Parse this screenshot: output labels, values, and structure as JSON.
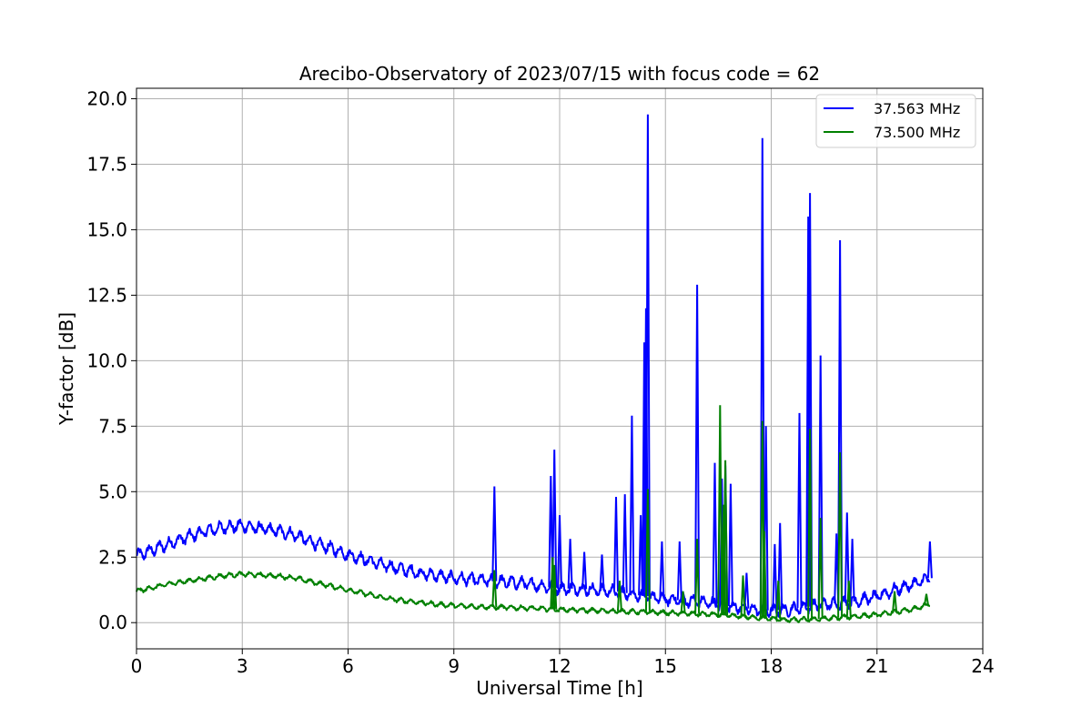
{
  "chart_data": {
    "type": "line",
    "title": "Arecibo-Observatory of 2023/07/15 with focus code = 62",
    "xlabel": "Universal Time [h]",
    "ylabel": "Y-factor [dB]",
    "xlim": [
      0,
      24
    ],
    "ylim": [
      -1,
      20.4
    ],
    "x_ticks": [
      0,
      3,
      6,
      9,
      12,
      15,
      18,
      21,
      24
    ],
    "x_tick_labels": [
      "0",
      "3",
      "6",
      "9",
      "12",
      "15",
      "18",
      "21",
      "24"
    ],
    "y_ticks": [
      0.0,
      2.5,
      5.0,
      7.5,
      10.0,
      12.5,
      15.0,
      17.5,
      20.0
    ],
    "y_tick_labels": [
      "0.0",
      "2.5",
      "5.0",
      "7.5",
      "10.0",
      "12.5",
      "15.0",
      "17.5",
      "20.0"
    ],
    "grid": true,
    "legend_position": "top-right",
    "series": [
      {
        "name": "37.563 MHz",
        "color": "#0000ff",
        "baseline": [
          [
            0,
            2.55
          ],
          [
            0.5,
            2.8
          ],
          [
            1,
            3.05
          ],
          [
            1.5,
            3.3
          ],
          [
            2,
            3.5
          ],
          [
            2.5,
            3.65
          ],
          [
            3,
            3.7
          ],
          [
            3.5,
            3.6
          ],
          [
            4,
            3.5
          ],
          [
            4.5,
            3.35
          ],
          [
            5,
            3.05
          ],
          [
            5.5,
            2.85
          ],
          [
            6,
            2.6
          ],
          [
            6.5,
            2.4
          ],
          [
            7,
            2.2
          ],
          [
            7.5,
            2.05
          ],
          [
            8,
            1.9
          ],
          [
            8.5,
            1.8
          ],
          [
            9,
            1.7
          ],
          [
            9.5,
            1.65
          ],
          [
            10,
            1.6
          ],
          [
            10.5,
            1.55
          ],
          [
            11,
            1.5
          ],
          [
            11.5,
            1.4
          ],
          [
            12,
            1.3
          ],
          [
            12.5,
            1.3
          ],
          [
            13,
            1.25
          ],
          [
            13.5,
            1.2
          ],
          [
            14,
            1.1
          ],
          [
            14.5,
            1.0
          ],
          [
            15,
            0.9
          ],
          [
            15.5,
            0.85
          ],
          [
            16,
            0.8
          ],
          [
            16.5,
            0.7
          ],
          [
            17,
            0.6
          ],
          [
            17.5,
            0.5
          ],
          [
            18,
            0.45
          ],
          [
            18.5,
            0.5
          ],
          [
            19,
            0.6
          ],
          [
            19.5,
            0.7
          ],
          [
            20,
            0.75
          ],
          [
            20.5,
            0.85
          ],
          [
            21,
            1.0
          ],
          [
            21.5,
            1.25
          ],
          [
            22,
            1.45
          ],
          [
            22.5,
            1.7
          ]
        ],
        "spikes": [
          [
            10.15,
            5.2
          ],
          [
            11.75,
            5.6
          ],
          [
            11.85,
            6.6
          ],
          [
            12.0,
            4.1
          ],
          [
            12.3,
            3.2
          ],
          [
            12.7,
            2.7
          ],
          [
            13.2,
            2.6
          ],
          [
            13.6,
            4.8
          ],
          [
            13.85,
            4.9
          ],
          [
            14.05,
            7.9
          ],
          [
            14.3,
            4.1
          ],
          [
            14.4,
            10.7
          ],
          [
            14.45,
            12.0
          ],
          [
            14.5,
            19.4
          ],
          [
            14.9,
            3.1
          ],
          [
            15.4,
            3.1
          ],
          [
            15.9,
            12.9
          ],
          [
            16.4,
            6.1
          ],
          [
            16.6,
            5.5
          ],
          [
            16.7,
            6.0
          ],
          [
            16.85,
            5.3
          ],
          [
            17.3,
            1.9
          ],
          [
            17.75,
            18.5
          ],
          [
            17.85,
            7.5
          ],
          [
            18.1,
            3.0
          ],
          [
            18.25,
            3.8
          ],
          [
            18.8,
            8.0
          ],
          [
            19.05,
            15.5
          ],
          [
            19.1,
            16.4
          ],
          [
            19.4,
            10.2
          ],
          [
            19.85,
            3.4
          ],
          [
            19.95,
            14.6
          ],
          [
            20.15,
            4.2
          ],
          [
            20.3,
            3.2
          ],
          [
            22.5,
            3.1
          ]
        ]
      },
      {
        "name": "73.500 MHz",
        "color": "#008000",
        "baseline": [
          [
            0,
            1.2
          ],
          [
            0.5,
            1.35
          ],
          [
            1,
            1.5
          ],
          [
            1.5,
            1.6
          ],
          [
            2,
            1.7
          ],
          [
            2.5,
            1.8
          ],
          [
            3,
            1.85
          ],
          [
            3.5,
            1.82
          ],
          [
            4,
            1.78
          ],
          [
            4.5,
            1.7
          ],
          [
            5,
            1.55
          ],
          [
            5.5,
            1.4
          ],
          [
            6,
            1.25
          ],
          [
            6.5,
            1.1
          ],
          [
            7,
            0.95
          ],
          [
            7.5,
            0.85
          ],
          [
            8,
            0.78
          ],
          [
            8.5,
            0.7
          ],
          [
            9,
            0.65
          ],
          [
            9.5,
            0.62
          ],
          [
            10,
            0.6
          ],
          [
            10.5,
            0.58
          ],
          [
            11,
            0.56
          ],
          [
            11.5,
            0.53
          ],
          [
            12,
            0.5
          ],
          [
            12.5,
            0.48
          ],
          [
            13,
            0.46
          ],
          [
            13.5,
            0.44
          ],
          [
            14,
            0.42
          ],
          [
            14.5,
            0.4
          ],
          [
            15,
            0.38
          ],
          [
            15.5,
            0.35
          ],
          [
            16,
            0.33
          ],
          [
            16.5,
            0.3
          ],
          [
            17,
            0.25
          ],
          [
            17.5,
            0.2
          ],
          [
            18,
            0.15
          ],
          [
            18.5,
            0.1
          ],
          [
            19,
            0.12
          ],
          [
            19.5,
            0.15
          ],
          [
            20,
            0.2
          ],
          [
            20.5,
            0.25
          ],
          [
            21,
            0.3
          ],
          [
            21.5,
            0.4
          ],
          [
            22,
            0.5
          ],
          [
            22.5,
            0.7
          ]
        ],
        "spikes": [
          [
            10.15,
            2.0
          ],
          [
            11.8,
            2.5
          ],
          [
            11.85,
            2.2
          ],
          [
            13.7,
            1.6
          ],
          [
            14.5,
            5.1
          ],
          [
            15.5,
            1.2
          ],
          [
            15.9,
            3.2
          ],
          [
            16.55,
            8.3
          ],
          [
            16.65,
            4.5
          ],
          [
            16.7,
            6.2
          ],
          [
            17.2,
            1.8
          ],
          [
            17.75,
            7.7
          ],
          [
            17.8,
            3.5
          ],
          [
            18.2,
            1.6
          ],
          [
            19.1,
            7.4
          ],
          [
            19.4,
            4.0
          ],
          [
            19.95,
            6.5
          ],
          [
            20.2,
            1.6
          ],
          [
            21.5,
            1.2
          ],
          [
            22.4,
            1.1
          ]
        ]
      }
    ]
  }
}
